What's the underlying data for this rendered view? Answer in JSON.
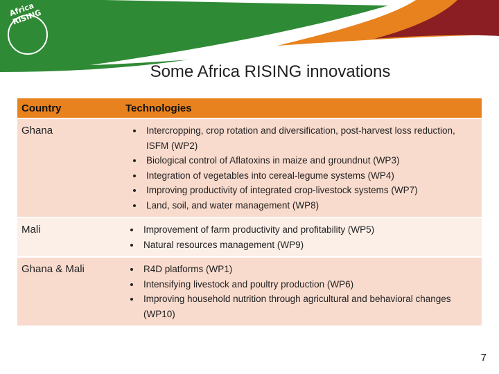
{
  "header": {
    "logo": "Africa RISING",
    "title": "Some Africa RISING innovations"
  },
  "table": {
    "columns": [
      "Country",
      "Technologies"
    ],
    "rows": [
      {
        "country": "Ghana",
        "technologies": [
          "Intercropping, crop rotation and diversification, post-harvest loss reduction, ISFM (WP2)",
          "Biological control of Aflatoxins in maize and groundnut (WP3)",
          "Integration of vegetables into cereal-legume systems (WP4)",
          "Improving productivity of integrated crop-livestock systems (WP7)",
          "Land, soil, and water management (WP8)"
        ]
      },
      {
        "country": "Mali",
        "technologies": [
          "Improvement of farm productivity and profitability (WP5)",
          "Natural resources management (WP9)"
        ]
      },
      {
        "country": "Ghana & Mali",
        "technologies": [
          "R4D platforms (WP1)",
          "Intensifying livestock and poultry production  (WP6)",
          "Improving household nutrition through agricultural and behavioral changes (WP10)"
        ]
      }
    ]
  },
  "page_number": "7"
}
